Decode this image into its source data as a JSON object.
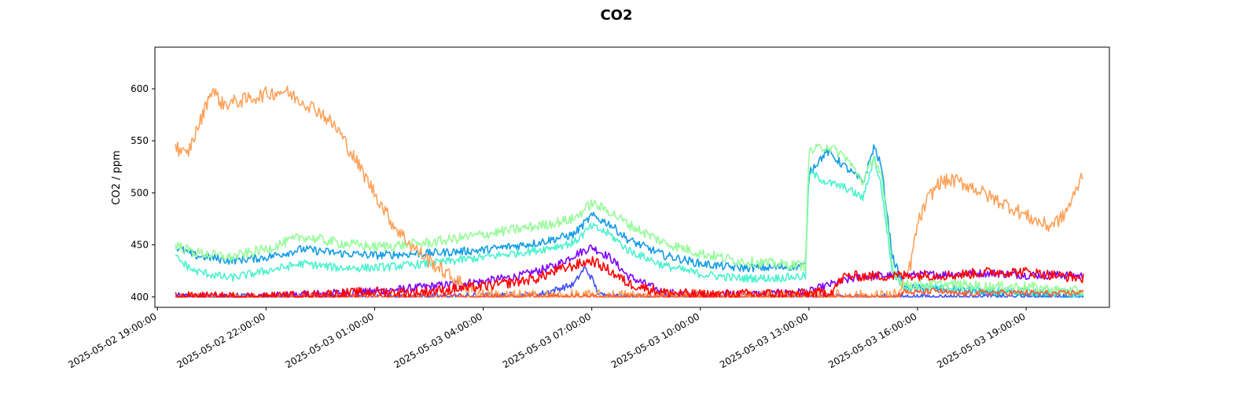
{
  "chart_data": {
    "type": "line",
    "title": "CO2",
    "xlabel": "",
    "ylabel": "CO2 / ppm",
    "x_unit": "hours since 2025-05-02 19:00:00",
    "xlim": [
      -0.07,
      26.3
    ],
    "ylim": [
      390,
      640
    ],
    "grid": false,
    "x_ticks": [
      {
        "at": 0,
        "label": "2025-05-02 19:00:00"
      },
      {
        "at": 3,
        "label": "2025-05-02 22:00:00"
      },
      {
        "at": 6,
        "label": "2025-05-03 01:00:00"
      },
      {
        "at": 9,
        "label": "2025-05-03 04:00:00"
      },
      {
        "at": 12,
        "label": "2025-05-03 07:00:00"
      },
      {
        "at": 15,
        "label": "2025-05-03 10:00:00"
      },
      {
        "at": 18,
        "label": "2025-05-03 13:00:00"
      },
      {
        "at": 21,
        "label": "2025-05-03 16:00:00"
      },
      {
        "at": 24,
        "label": "2025-05-03 19:00:00"
      }
    ],
    "y_ticks": [
      400,
      450,
      500,
      550,
      600
    ],
    "series": [
      {
        "color": "#7f00ff",
        "noise": 4,
        "points": [
          [
            0.5,
            400
          ],
          [
            3,
            400
          ],
          [
            4.5,
            403
          ],
          [
            6,
            405
          ],
          [
            7.5,
            410
          ],
          [
            9,
            415
          ],
          [
            10,
            420
          ],
          [
            11,
            430
          ],
          [
            11.5,
            440
          ],
          [
            12,
            448
          ],
          [
            12.5,
            438
          ],
          [
            13,
            420
          ],
          [
            14,
            404
          ],
          [
            15,
            402
          ],
          [
            17,
            403
          ],
          [
            18,
            405
          ],
          [
            18.6,
            412
          ],
          [
            19.5,
            420
          ],
          [
            21,
            421
          ],
          [
            22,
            422
          ],
          [
            23,
            423
          ],
          [
            24,
            421
          ],
          [
            25,
            421
          ],
          [
            25.6,
            420
          ]
        ]
      },
      {
        "color": "#4050f6",
        "noise": 3,
        "points": [
          [
            0.5,
            400
          ],
          [
            7,
            400
          ],
          [
            10.5,
            402
          ],
          [
            11.5,
            412
          ],
          [
            11.8,
            428
          ],
          [
            12,
            418
          ],
          [
            12.2,
            402
          ],
          [
            13,
            400
          ],
          [
            25.6,
            400
          ]
        ]
      },
      {
        "color": "#129ce6",
        "noise": 4,
        "points": [
          [
            0.5,
            448
          ],
          [
            1,
            440
          ],
          [
            2,
            435
          ],
          [
            3,
            438
          ],
          [
            4,
            446
          ],
          [
            5,
            442
          ],
          [
            6,
            440
          ],
          [
            7.5,
            442
          ],
          [
            9,
            445
          ],
          [
            10.5,
            452
          ],
          [
            11.5,
            460
          ],
          [
            12,
            478
          ],
          [
            12.5,
            470
          ],
          [
            13,
            455
          ],
          [
            14,
            440
          ],
          [
            15,
            432
          ],
          [
            16,
            428
          ],
          [
            17,
            428
          ],
          [
            17.9,
            430
          ],
          [
            18,
            520
          ],
          [
            18.5,
            540
          ],
          [
            19,
            525
          ],
          [
            19.5,
            510
          ],
          [
            19.8,
            545
          ],
          [
            20,
            525
          ],
          [
            20.3,
            440
          ],
          [
            20.6,
            410
          ],
          [
            21,
            408
          ],
          [
            22,
            407
          ],
          [
            23,
            404
          ],
          [
            24,
            402
          ],
          [
            25,
            401
          ],
          [
            25.6,
            400
          ]
        ]
      },
      {
        "color": "#4cf2ce",
        "noise": 4,
        "points": [
          [
            0.5,
            438
          ],
          [
            1,
            425
          ],
          [
            2,
            418
          ],
          [
            3,
            425
          ],
          [
            4,
            432
          ],
          [
            5,
            428
          ],
          [
            6,
            428
          ],
          [
            7.5,
            432
          ],
          [
            9,
            438
          ],
          [
            10.5,
            445
          ],
          [
            11.5,
            452
          ],
          [
            12,
            468
          ],
          [
            12.5,
            460
          ],
          [
            13,
            445
          ],
          [
            14,
            430
          ],
          [
            15,
            422
          ],
          [
            16,
            418
          ],
          [
            17,
            418
          ],
          [
            17.9,
            420
          ],
          [
            18,
            520
          ],
          [
            18.5,
            510
          ],
          [
            19,
            505
          ],
          [
            19.5,
            495
          ],
          [
            19.8,
            535
          ],
          [
            20,
            505
          ],
          [
            20.3,
            425
          ],
          [
            20.6,
            410
          ],
          [
            21,
            410
          ],
          [
            22,
            408
          ],
          [
            23,
            406
          ],
          [
            24,
            405
          ],
          [
            25,
            404
          ],
          [
            25.6,
            402
          ]
        ]
      },
      {
        "color": "#98fb9b",
        "noise": 5,
        "points": [
          [
            0.5,
            450
          ],
          [
            1,
            443
          ],
          [
            2,
            438
          ],
          [
            3,
            446
          ],
          [
            4,
            458
          ],
          [
            5,
            452
          ],
          [
            6,
            448
          ],
          [
            7.5,
            452
          ],
          [
            9,
            460
          ],
          [
            10.5,
            468
          ],
          [
            11.5,
            475
          ],
          [
            12,
            490
          ],
          [
            12.5,
            482
          ],
          [
            13,
            470
          ],
          [
            14,
            452
          ],
          [
            15,
            442
          ],
          [
            16,
            435
          ],
          [
            17,
            432
          ],
          [
            17.9,
            430
          ],
          [
            18,
            540
          ],
          [
            18.5,
            545
          ],
          [
            19,
            535
          ],
          [
            19.5,
            510
          ],
          [
            19.8,
            535
          ],
          [
            20,
            515
          ],
          [
            20.3,
            430
          ],
          [
            20.6,
            412
          ],
          [
            21,
            412
          ],
          [
            22,
            412
          ],
          [
            23,
            410
          ],
          [
            24,
            410
          ],
          [
            25,
            406
          ],
          [
            25.6,
            405
          ]
        ]
      },
      {
        "color": "#fea25a",
        "noise": 7,
        "points": [
          [
            0.5,
            545
          ],
          [
            0.8,
            535
          ],
          [
            1.2,
            570
          ],
          [
            1.5,
            600
          ],
          [
            1.8,
            585
          ],
          [
            2.5,
            590
          ],
          [
            3,
            595
          ],
          [
            3.5,
            598
          ],
          [
            4,
            588
          ],
          [
            4.5,
            578
          ],
          [
            5,
            560
          ],
          [
            5.5,
            530
          ],
          [
            6,
            500
          ],
          [
            6.5,
            470
          ],
          [
            7,
            450
          ],
          [
            7.5,
            435
          ],
          [
            8,
            422
          ],
          [
            8.5,
            410
          ],
          [
            9,
            403
          ],
          [
            9.5,
            400
          ],
          [
            20,
            400
          ],
          [
            20.5,
            402
          ],
          [
            20.8,
            430
          ],
          [
            21,
            470
          ],
          [
            21.3,
            495
          ],
          [
            21.6,
            510
          ],
          [
            22,
            512
          ],
          [
            22.5,
            506
          ],
          [
            23,
            496
          ],
          [
            23.5,
            488
          ],
          [
            24,
            478
          ],
          [
            24.6,
            468
          ],
          [
            25,
            476
          ],
          [
            25.3,
            495
          ],
          [
            25.6,
            522
          ]
        ]
      },
      {
        "color": "#ff5f30",
        "noise": 3,
        "points": [
          [
            0.5,
            400
          ],
          [
            20.4,
            400
          ],
          [
            20.6,
            405
          ],
          [
            21,
            404
          ],
          [
            21.5,
            406
          ],
          [
            22,
            403
          ],
          [
            23,
            404
          ],
          [
            24,
            404
          ],
          [
            25,
            403
          ],
          [
            25.6,
            405
          ]
        ]
      },
      {
        "color": "#ff0000",
        "noise": 5,
        "points": [
          [
            0.5,
            400
          ],
          [
            3,
            400
          ],
          [
            4,
            401
          ],
          [
            5,
            403
          ],
          [
            6,
            405
          ],
          [
            7,
            404
          ],
          [
            8,
            407
          ],
          [
            9,
            410
          ],
          [
            10,
            415
          ],
          [
            10.5,
            418
          ],
          [
            11,
            425
          ],
          [
            11.5,
            430
          ],
          [
            12,
            435
          ],
          [
            12.5,
            425
          ],
          [
            13,
            413
          ],
          [
            14,
            404
          ],
          [
            15,
            402
          ],
          [
            17,
            403
          ],
          [
            18,
            403
          ],
          [
            18.6,
            405
          ],
          [
            19,
            420
          ],
          [
            20,
            420
          ],
          [
            21,
            421
          ],
          [
            22,
            421
          ],
          [
            23,
            424
          ],
          [
            24,
            424
          ],
          [
            25,
            420
          ],
          [
            25.6,
            418
          ]
        ]
      }
    ]
  }
}
